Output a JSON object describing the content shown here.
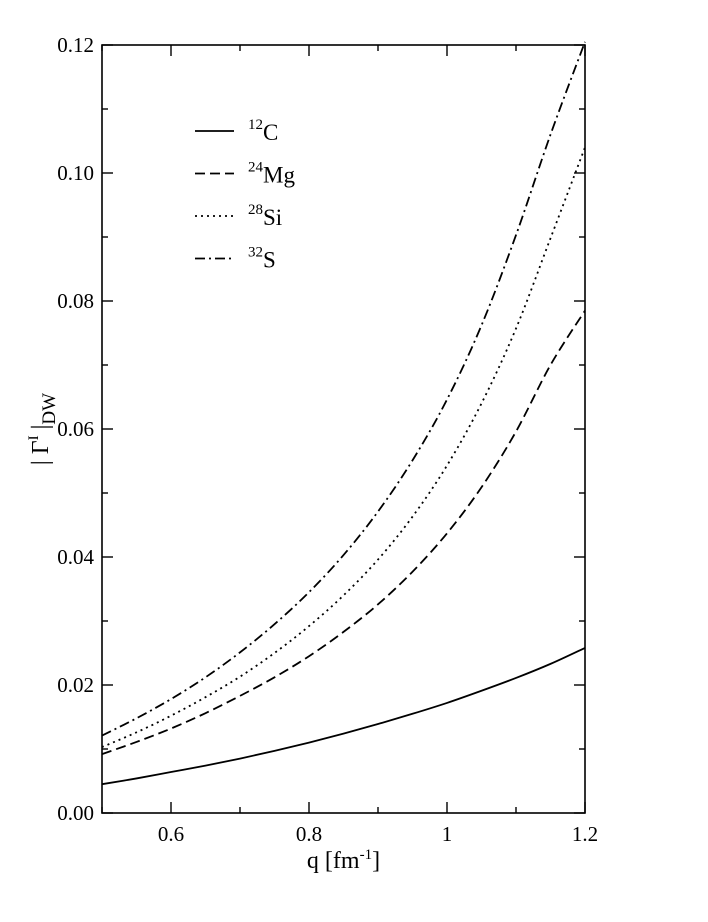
{
  "chart_data": {
    "type": "line",
    "title": "",
    "xlabel": "q [fm",
    "xlabel_sup": "-1",
    "xlabel_tail": "]",
    "ylabel_parts": {
      "pre": "| Γ",
      "sup": "I",
      "mid": " |",
      "sub": "DW"
    },
    "xlim": [
      0.5,
      1.2
    ],
    "ylim": [
      0.0,
      0.12
    ],
    "x_ticks": [
      0.6,
      0.8,
      1.0,
      1.2
    ],
    "x_tick_labels": [
      "0.6",
      "0.8",
      "1",
      "1.2"
    ],
    "y_ticks": [
      0.0,
      0.02,
      0.04,
      0.06,
      0.08,
      0.1,
      0.12
    ],
    "y_tick_labels": [
      "0.00",
      "0.02",
      "0.04",
      "0.06",
      "0.08",
      "0.10",
      "0.12"
    ],
    "grid": false,
    "legend_position": "top-left",
    "x": [
      0.5,
      0.55,
      0.6,
      0.65,
      0.7,
      0.75,
      0.8,
      0.85,
      0.9,
      0.95,
      1.0,
      1.05,
      1.1,
      1.15,
      1.2
    ],
    "series": [
      {
        "name": "C",
        "mass": "12",
        "style": "solid",
        "values": [
          0.0045,
          0.0054,
          0.0064,
          0.0074,
          0.0085,
          0.0097,
          0.011,
          0.0124,
          0.0139,
          0.0155,
          0.0172,
          0.0191,
          0.0211,
          0.0233,
          0.0258
        ]
      },
      {
        "name": "Mg",
        "mass": "24",
        "style": "dashed",
        "values": [
          0.0092,
          0.0111,
          0.0132,
          0.0156,
          0.0183,
          0.0212,
          0.0245,
          0.0283,
          0.0326,
          0.0377,
          0.0437,
          0.0509,
          0.0596,
          0.07,
          0.0785
        ]
      },
      {
        "name": "Si",
        "mass": "28",
        "style": "dotted",
        "values": [
          0.0103,
          0.0126,
          0.0152,
          0.0181,
          0.0213,
          0.025,
          0.0292,
          0.034,
          0.0396,
          0.0463,
          0.0543,
          0.064,
          0.0757,
          0.0898,
          0.104
        ]
      },
      {
        "name": "S",
        "mass": "32",
        "style": "dashdot",
        "values": [
          0.0121,
          0.0148,
          0.0178,
          0.0212,
          0.0251,
          0.0295,
          0.0345,
          0.0403,
          0.0471,
          0.0551,
          0.0646,
          0.0762,
          0.0903,
          0.106,
          0.1205
        ]
      }
    ]
  }
}
